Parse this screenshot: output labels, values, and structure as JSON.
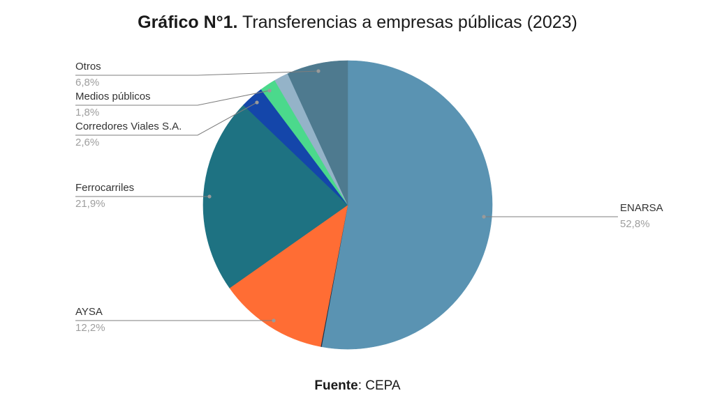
{
  "title": {
    "prefix": "Gráfico N°1.",
    "text": "Transferencias a empresas públicas (2023)"
  },
  "source": {
    "label": "Fuente",
    "text": ": CEPA"
  },
  "chart_data": {
    "type": "pie",
    "title": "Gráfico N°1. Transferencias a empresas públicas (2023)",
    "slices": [
      {
        "label": "ENARSA",
        "value_label": "52,8%",
        "value": 52.8,
        "color": "#5a93b2"
      },
      {
        "label": "",
        "value_label": "",
        "value": 0.1,
        "color": "#1f2f44"
      },
      {
        "label": "AYSA",
        "value_label": "12,2%",
        "value": 12.2,
        "color": "#ff6d34"
      },
      {
        "label": "Ferrocarriles",
        "value_label": "21,9%",
        "value": 21.9,
        "color": "#1e7282"
      },
      {
        "label": "Corredores Viales S.A.",
        "value_label": "2,6%",
        "value": 2.6,
        "color": "#1446aa"
      },
      {
        "label": "Medios públicos",
        "value_label": "1,8%",
        "value": 1.8,
        "color": "#4bd98c"
      },
      {
        "label": "",
        "value_label": "",
        "value": 1.6,
        "color": "#94b3c8"
      },
      {
        "label": "Otros",
        "value_label": "6,8%",
        "value": 6.8,
        "color": "#4e7a8f"
      }
    ]
  }
}
